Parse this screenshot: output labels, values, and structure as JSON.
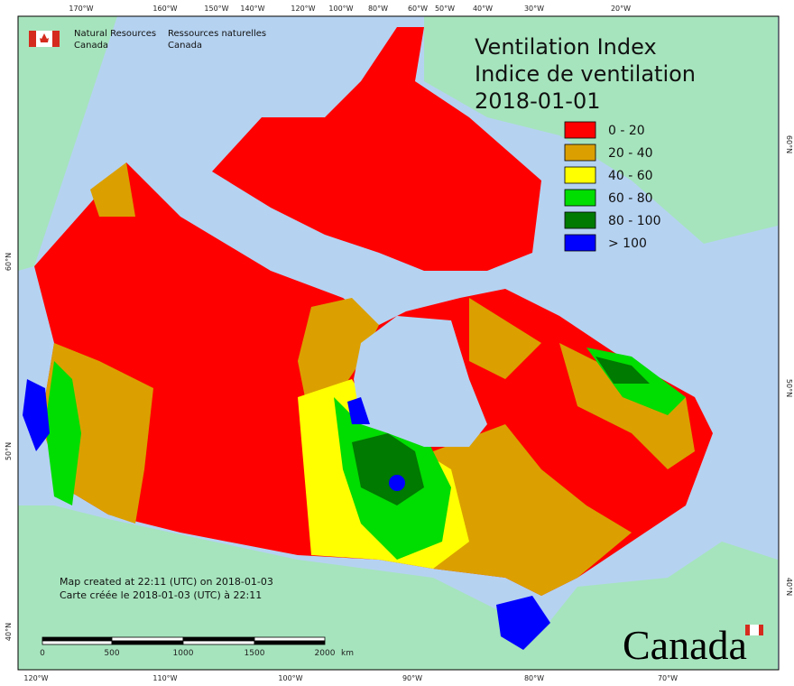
{
  "graticule": {
    "top": [
      "170°W",
      "160°W",
      "150°W",
      "140°W",
      "120°W",
      "100°W",
      "80°W",
      "60°W",
      "50°W",
      "40°W",
      "30°W",
      "20°W"
    ],
    "bottom": [
      "120°W",
      "110°W",
      "100°W",
      "90°W",
      "80°W",
      "70°W"
    ],
    "left": [
      "60°N",
      "50°N",
      "40°N"
    ],
    "right": [
      "60°N",
      "50°N",
      "40°N"
    ]
  },
  "logo": {
    "english": [
      "Natural Resources",
      "Canada"
    ],
    "french": [
      "Ressources naturelles",
      "Canada"
    ]
  },
  "title": [
    "Ventilation Index",
    "Indice de ventilation",
    "2018-01-01"
  ],
  "legend": {
    "items": [
      {
        "label": "0 - 20",
        "color": "#ff0000"
      },
      {
        "label": "20 - 40",
        "color": "#dba000"
      },
      {
        "label": "40 - 60",
        "color": "#ffff00"
      },
      {
        "label": "60 - 80",
        "color": "#00dd00"
      },
      {
        "label": "80 - 100",
        "color": "#007a00"
      },
      {
        "label": "> 100",
        "color": "#0000ff"
      }
    ]
  },
  "footer": [
    "Map created at 22:11 (UTC) on 2018-01-03",
    "Carte créée le 2018-01-03 (UTC) à 22:11"
  ],
  "scale_bar": {
    "labels": [
      "0",
      "500",
      "1000",
      "1500",
      "2000"
    ],
    "unit": "km"
  },
  "wordmark": "Canada"
}
